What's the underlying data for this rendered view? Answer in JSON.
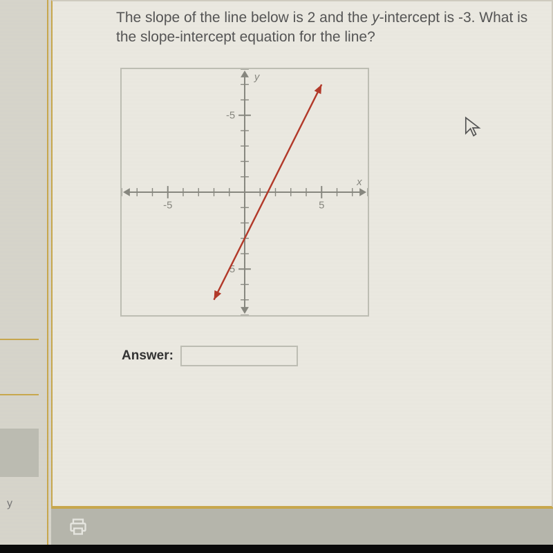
{
  "question": {
    "part1": "The slope of the line below is 2 and the ",
    "ital": "y",
    "part2": "-intercept is -3. What is the slope-intercept equation for the line?"
  },
  "answer_label": "Answer:",
  "answer_value": "",
  "left_label": "y",
  "chart": {
    "type": "line",
    "xlim": [
      -8,
      8
    ],
    "ylim": [
      -8,
      8
    ],
    "xtick_major": [
      -5,
      5
    ],
    "ytick_major": [
      -5,
      5
    ],
    "xtick_labels": [
      "-5",
      "5"
    ],
    "ytick_labels": [
      "5",
      "-5"
    ],
    "x_axis_label": "x",
    "y_axis_label": "y",
    "tick_step": 1,
    "tick_len": 6,
    "axis_color": "#888880",
    "axis_width": 2,
    "line_color": "#b43a2a",
    "line_width": 2.5,
    "arrow_size": 10,
    "background_color": "#eceae2",
    "label_color": "#888880",
    "label_fontsize": 15,
    "slope": 2,
    "intercept": -3,
    "line_x_endpoints": [
      -2,
      5
    ]
  },
  "colors": {
    "page_bg": "#d8d6cc",
    "content_bg": "#eceae2",
    "accent": "#c9a84d",
    "toolbar_bg": "#b7b7ad",
    "text": "#555555"
  }
}
